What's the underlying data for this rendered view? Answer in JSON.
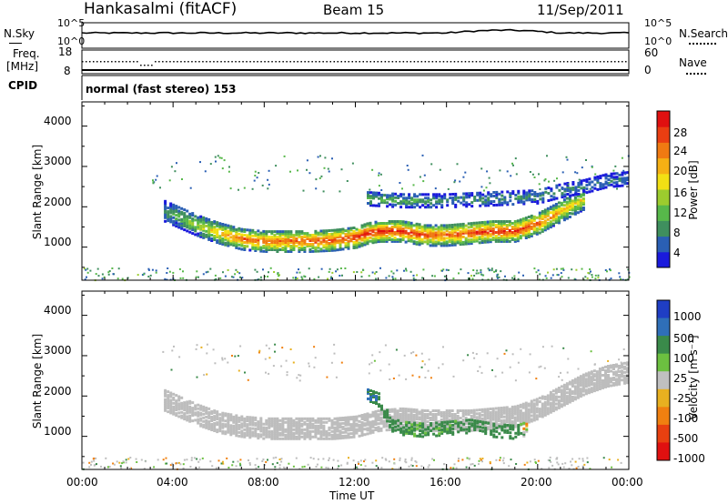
{
  "header": {
    "station": "Hankasalmi (fitACF)",
    "beam": "Beam 15",
    "date": "11/Sep/2011"
  },
  "strip": {
    "nsky_label": "N.Sky",
    "nsearch_label": "N.Search",
    "noise_ticks_left": [
      "10^5",
      "10^0"
    ],
    "noise_ticks_right": [
      "10^5",
      "10^0"
    ],
    "freq_label_1": "Freq.",
    "freq_label_2": "[MHz]",
    "freq_ticks": [
      "18",
      "8"
    ],
    "nave_label": "Nave",
    "nave_ticks": [
      "60",
      "0"
    ],
    "cpid_label": "CPID",
    "cpid_text": "normal (fast stereo) 153"
  },
  "colors": {
    "power_scale": [
      "#1a1adc",
      "#2a5fb4",
      "#3f8f5e",
      "#57b84a",
      "#9ccc2e",
      "#f2e014",
      "#f5b014",
      "#f07a12",
      "#ea3e12",
      "#e01010"
    ],
    "velocity_scale": [
      "#1f3ec4",
      "#2f6fb8",
      "#3a8a4a",
      "#6cc040",
      "#c0c0c0",
      "#e8b020",
      "#f08010",
      "#e84010",
      "#e01010"
    ],
    "ground_grey": "#bdbdbd"
  },
  "chart_data": [
    {
      "type": "heatmap",
      "title": "",
      "ylabel": "Slant Range [km]",
      "ylim": [
        180,
        4600
      ],
      "yticks": [
        "1000",
        "2000",
        "3000",
        "4000"
      ],
      "xlim": [
        "00:00",
        "24:00"
      ],
      "colorbar": {
        "label": "Power [dB]",
        "range": [
          0,
          30
        ],
        "ticks": [
          "4",
          "8",
          "12",
          "16",
          "20",
          "24",
          "28"
        ]
      },
      "series": [
        {
          "name": "main echo band",
          "x": [
            3.6,
            5,
            6,
            7,
            8,
            9,
            10,
            11,
            12,
            12.5,
            13,
            14,
            15,
            16,
            17,
            18,
            19,
            20,
            21,
            22
          ],
          "y": [
            1900,
            1550,
            1350,
            1200,
            1150,
            1150,
            1150,
            1180,
            1250,
            1350,
            1400,
            1400,
            1300,
            1300,
            1350,
            1400,
            1400,
            1600,
            1900,
            2200
          ],
          "peak_db": [
            8,
            14,
            20,
            24,
            24,
            24,
            26,
            26,
            28,
            28,
            28,
            28,
            26,
            24,
            26,
            28,
            28,
            26,
            20,
            16
          ]
        },
        {
          "name": "upper echo band",
          "x": [
            12.5,
            14,
            16,
            18,
            20,
            21,
            22,
            23,
            24
          ],
          "y": [
            2200,
            2150,
            2150,
            2200,
            2250,
            2400,
            2500,
            2650,
            2700
          ],
          "peak_db": [
            12,
            10,
            8,
            8,
            8,
            8,
            6,
            6,
            6
          ]
        }
      ]
    },
    {
      "type": "heatmap",
      "title": "",
      "ylabel": "Slant Range [km]",
      "xlabel": "Time UT",
      "ylim": [
        180,
        4600
      ],
      "yticks": [
        "1000",
        "2000",
        "3000",
        "4000"
      ],
      "xlim": [
        "00:00",
        "24:00"
      ],
      "xticks": [
        "00:00",
        "04:00",
        "08:00",
        "12:00",
        "16:00",
        "20:00",
        "00:00"
      ],
      "colorbar": {
        "label": "Velocity [m s⁻¹]",
        "range": [
          -1000,
          1000
        ],
        "ticks": [
          "1000",
          "500",
          "100",
          "25",
          "-25",
          "-100",
          "-500",
          "-1000"
        ]
      },
      "series": [
        {
          "name": "ground scatter band",
          "x": [
            3.6,
            5,
            6,
            7,
            8,
            9,
            10,
            11,
            12,
            13,
            14,
            15,
            16,
            17,
            18,
            19,
            20,
            21,
            22,
            23,
            24
          ],
          "y": [
            1900,
            1550,
            1350,
            1250,
            1200,
            1200,
            1200,
            1200,
            1250,
            1400,
            1450,
            1400,
            1400,
            1400,
            1450,
            1500,
            1700,
            2000,
            2300,
            2500,
            2600
          ],
          "velocity": [
            0,
            0,
            0,
            0,
            0,
            0,
            0,
            0,
            0,
            0,
            0,
            0,
            0,
            0,
            0,
            0,
            0,
            0,
            0,
            0,
            0
          ]
        },
        {
          "name": "ionospheric scatter",
          "x": [
            12.5,
            13,
            13.5,
            14,
            15,
            16,
            17,
            18,
            19,
            19.5
          ],
          "y": [
            2000,
            1900,
            1300,
            1200,
            1150,
            1200,
            1250,
            1150,
            1100,
            1200
          ],
          "velocity": [
            500,
            400,
            300,
            200,
            150,
            200,
            300,
            400,
            300,
            -100
          ]
        }
      ]
    }
  ]
}
